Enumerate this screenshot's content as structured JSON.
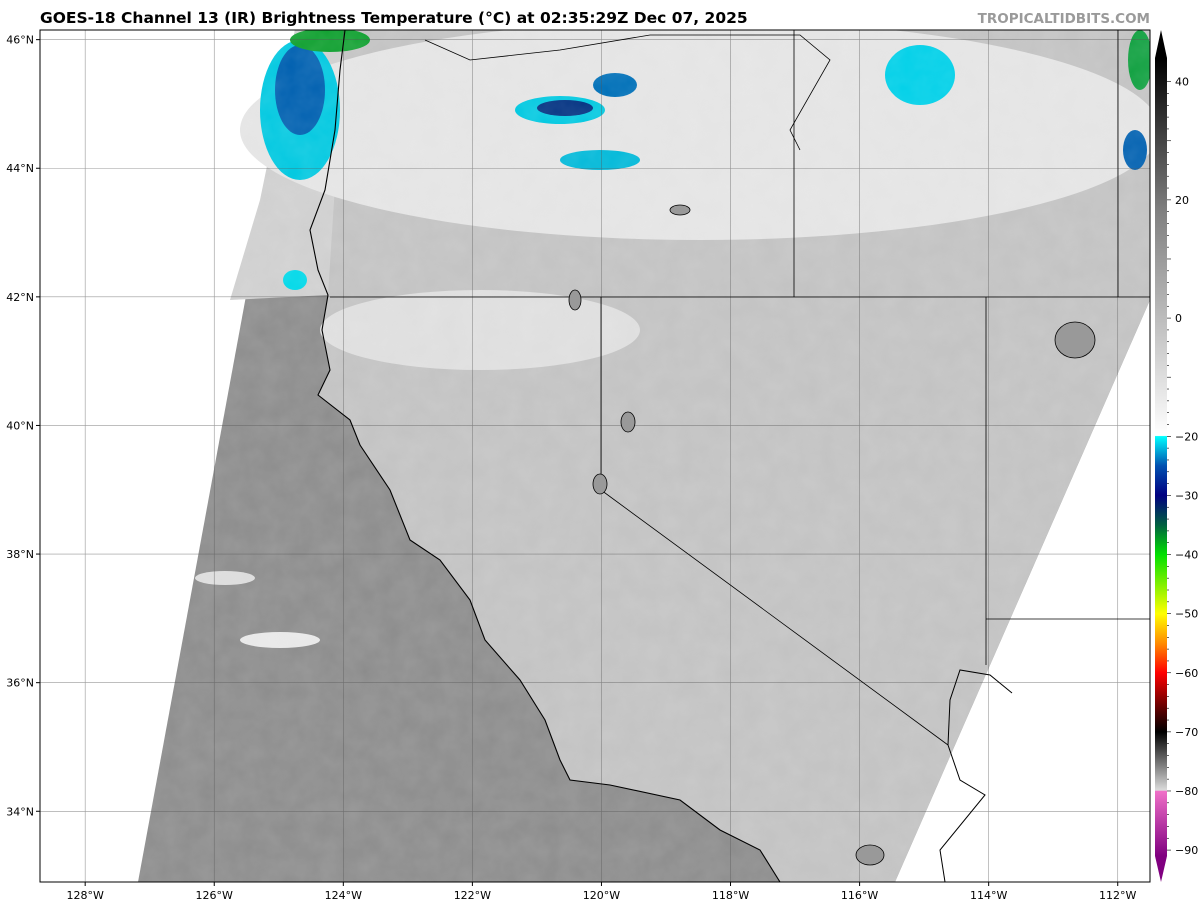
{
  "header": {
    "title": "GOES-18 Channel 13 (IR) Brightness Temperature (°C) at 02:35:29Z Dec 07, 2025",
    "credit": "TROPICALTIDBITS.COM"
  },
  "map": {
    "lon_ticks": [
      "128°W",
      "126°W",
      "124°W",
      "122°W",
      "120°W",
      "118°W",
      "116°W",
      "114°W",
      "112°W"
    ],
    "lon_values": [
      -128,
      -126,
      -124,
      -122,
      -120,
      -118,
      -116,
      -114,
      -112
    ],
    "lat_ticks": [
      "46°N",
      "44°N",
      "42°N",
      "40°N",
      "38°N",
      "36°N",
      "34°N"
    ],
    "lat_values": [
      46,
      44,
      42,
      40,
      38,
      36,
      34
    ],
    "extent": {
      "lon_min": -128.7,
      "lon_max": -111.5,
      "lat_min": 32.9,
      "lat_max": 46.15
    }
  },
  "colorbar": {
    "labels": [
      "40",
      "20",
      "0",
      "−20",
      "−30",
      "−40",
      "−50",
      "−60",
      "−70",
      "−80",
      "−90"
    ],
    "values": [
      40,
      20,
      0,
      -20,
      -30,
      -40,
      -50,
      -60,
      -70,
      -80,
      -90
    ],
    "range": [
      -90,
      40
    ],
    "colors": {
      "warm_black": "#000000",
      "gray": "#808080",
      "white": "#ffffff",
      "cyan": "#00ffff",
      "blue": "#0050b0",
      "navy": "#000080",
      "green": "#00e000",
      "yellow": "#ffff00",
      "orange": "#ff8c00",
      "red": "#ff0000",
      "dark_red": "#600000",
      "black": "#000000",
      "light_gray": "#dcdcdc",
      "pink": "#f070c8",
      "purple": "#800080"
    }
  }
}
